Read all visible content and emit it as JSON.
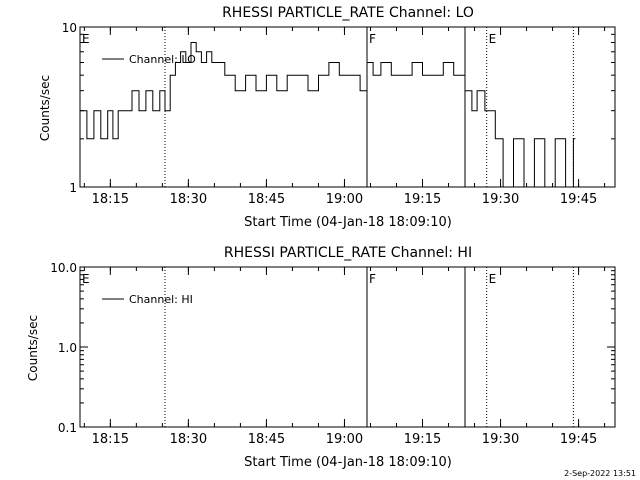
{
  "footer": {
    "date_stamp": "2-Sep-2022 13:51"
  },
  "chart_data": [
    {
      "type": "line",
      "title": "RHESSI PARTICLE_RATE Channel: LO",
      "xlabel": "Start Time (04-Jan-18 18:09:10)",
      "ylabel": "Counts/sec",
      "yscale": "log",
      "ylim": [
        1,
        10
      ],
      "xlim": [
        "18:09:10",
        "19:52:00"
      ],
      "x_ticks": [
        "18:15",
        "18:30",
        "18:45",
        "19:00",
        "19:15",
        "19:30",
        "19:45"
      ],
      "y_ticks": [
        "1",
        "10"
      ],
      "legend": {
        "placement": "top-left",
        "entries": [
          "Channel: LO"
        ]
      },
      "markers": [
        {
          "time": "18:09:10",
          "label": "E",
          "style": "none"
        },
        {
          "time": "18:25:30",
          "label": "",
          "style": "dotted"
        },
        {
          "time": "19:04:20",
          "label": "F",
          "style": "solid"
        },
        {
          "time": "19:23:10",
          "label": "",
          "style": "solid"
        },
        {
          "time": "19:27:20",
          "label": "E",
          "style": "dotted"
        },
        {
          "time": "19:44:00",
          "label": "",
          "style": "dotted"
        }
      ],
      "series": [
        {
          "name": "Channel: LO",
          "x": [
            "18:09:10",
            "18:10:30",
            "18:11:50",
            "18:13:10",
            "18:14:30",
            "18:15:30",
            "18:16:30",
            "18:17:50",
            "18:19:10",
            "18:20:30",
            "18:21:50",
            "18:23:10",
            "18:24:30",
            "18:25:30",
            "18:26:30",
            "18:27:30",
            "18:28:30",
            "18:29:30",
            "18:30:30",
            "18:31:30",
            "18:32:30",
            "18:33:30",
            "18:34:30",
            "18:35:30",
            "18:37:00",
            "18:39:00",
            "18:41:00",
            "18:43:00",
            "18:45:00",
            "18:47:00",
            "18:49:00",
            "18:51:00",
            "18:53:00",
            "18:55:00",
            "18:57:00",
            "18:59:00",
            "19:01:00",
            "19:03:00",
            "19:04:20",
            "19:05:30",
            "19:07:00",
            "19:09:00",
            "19:11:00",
            "19:13:00",
            "19:15:00",
            "19:17:00",
            "19:19:00",
            "19:21:00",
            "19:23:10",
            "19:24:30",
            "19:25:30",
            "19:27:00",
            "19:28:00",
            "19:29:00",
            "19:30:30",
            "19:32:30",
            "19:34:30",
            "19:36:30",
            "19:38:30",
            "19:40:30",
            "19:42:30",
            "19:44:00"
          ],
          "values": [
            3,
            2,
            3,
            2,
            3,
            2,
            3,
            3,
            4,
            3,
            4,
            3,
            4,
            3,
            5,
            6,
            7,
            6,
            8,
            7,
            6,
            7,
            6,
            6,
            5,
            4,
            5,
            4,
            5,
            4,
            5,
            5,
            4,
            5,
            6,
            5,
            5,
            4,
            6,
            5,
            6,
            5,
            5,
            6,
            5,
            5,
            6,
            5,
            4,
            3,
            4,
            3,
            3,
            2,
            1,
            2,
            1,
            2,
            1,
            2,
            1,
            2
          ]
        }
      ]
    },
    {
      "type": "line",
      "title": "RHESSI PARTICLE_RATE Channel: HI",
      "xlabel": "Start Time (04-Jan-18 18:09:10)",
      "ylabel": "Counts/sec",
      "yscale": "log",
      "ylim": [
        0.1,
        10
      ],
      "xlim": [
        "18:09:10",
        "19:52:00"
      ],
      "x_ticks": [
        "18:15",
        "18:30",
        "18:45",
        "19:00",
        "19:15",
        "19:30",
        "19:45"
      ],
      "y_ticks": [
        "0.1",
        "1.0",
        "10.0"
      ],
      "legend": {
        "placement": "top-left",
        "entries": [
          "Channel: HI"
        ]
      },
      "markers": [
        {
          "time": "18:09:10",
          "label": "E",
          "style": "none"
        },
        {
          "time": "18:25:30",
          "label": "",
          "style": "dotted"
        },
        {
          "time": "19:04:20",
          "label": "F",
          "style": "solid"
        },
        {
          "time": "19:23:10",
          "label": "",
          "style": "solid"
        },
        {
          "time": "19:27:20",
          "label": "E",
          "style": "dotted"
        },
        {
          "time": "19:44:00",
          "label": "",
          "style": "dotted"
        }
      ],
      "series": [
        {
          "name": "Channel: HI",
          "x": [],
          "values": []
        }
      ]
    }
  ]
}
